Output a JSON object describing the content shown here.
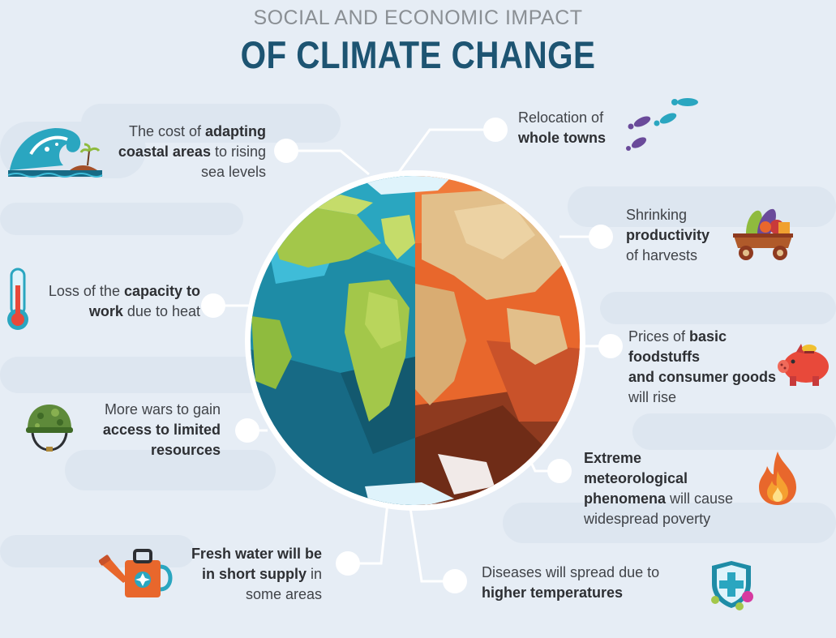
{
  "title": {
    "line1": "SOCIAL AND ECONOMIC IMPACT",
    "line2": "OF CLIMATE CHANGE"
  },
  "items": [
    {
      "id": "coastal",
      "pre": "The cost of ",
      "b1": "adapting",
      "mid": "",
      "b2": "coastal areas",
      "post": " to rising sea levels",
      "icon": "wave-icon"
    },
    {
      "id": "relocation",
      "pre": "Relocation of ",
      "b1": "whole towns",
      "mid": "",
      "b2": "",
      "post": "",
      "icon": "footprints-icon"
    },
    {
      "id": "harvests",
      "pre": "Shrinking ",
      "b1": "productivity",
      "mid": "",
      "b2": "",
      "post": " of harvests",
      "icon": "cart-icon"
    },
    {
      "id": "heat",
      "pre": "Loss of the ",
      "b1": "capacity to work",
      "mid": "",
      "b2": "",
      "post": " due to heat",
      "icon": "thermometer-icon"
    },
    {
      "id": "prices",
      "pre": "Prices of ",
      "b1": "basic foodstuffs and consumer goods",
      "mid": "",
      "b2": "",
      "post": " will rise",
      "icon": "piggy-bank-icon"
    },
    {
      "id": "wars",
      "pre": "More wars to gain ",
      "b1": "access to limited",
      "mid": "",
      "b2": "",
      "post": " resources",
      "icon": "helmet-icon"
    },
    {
      "id": "extreme",
      "pre": "",
      "b1": "Extreme meteorological phenomena",
      "mid": "",
      "b2": "",
      "post": " will cause widespread poverty",
      "icon": "fire-icon"
    },
    {
      "id": "water",
      "pre": "",
      "b1": "Fresh water will be in short supply",
      "mid": "",
      "b2": "",
      "post": " in some areas",
      "icon": "watering-can-icon"
    },
    {
      "id": "diseases",
      "pre": "Diseases will spread due to ",
      "b1": "higher temperatures",
      "mid": "",
      "b2": "",
      "post": "",
      "icon": "shield-virus-icon"
    }
  ],
  "text": {
    "coastal_1a": "The cost of ",
    "coastal_1b": "adapting",
    "coastal_2a": "coastal areas",
    "coastal_2b": " to rising",
    "coastal_3": "sea levels",
    "reloc_1": "Relocation of",
    "reloc_2": "whole towns",
    "harv_1": "Shrinking",
    "harv_2": "productivity",
    "harv_3": "of harvests",
    "heat_1a": "Loss of the ",
    "heat_1b": "capacity to",
    "heat_2a": "work",
    "heat_2b": " due to heat",
    "price_1a": "Prices of ",
    "price_1b": "basic foodstuffs",
    "price_2": "and consumer goods",
    "price_3": "will rise",
    "wars_1": "More wars to gain",
    "wars_2": "access to limited",
    "wars_3": "resources",
    "ext_1": "Extreme meteorological",
    "ext_2a": "phenomena",
    "ext_2b": " will cause",
    "ext_3": "widespread poverty",
    "water_1": "Fresh water will be",
    "water_2a": "in short supply",
    "water_2b": " in",
    "water_3": "some areas",
    "dis_1": "Diseases will spread due to",
    "dis_2": "higher temperatures"
  },
  "colors": {
    "title_main": "#1d5472",
    "title_top": "#8a8f94",
    "background": "#e6edf5",
    "ocean": "#1e8ca6",
    "land_green": "#a3c74a",
    "hot_orange": "#e8672c",
    "hot_sand": "#e2bf8a"
  }
}
